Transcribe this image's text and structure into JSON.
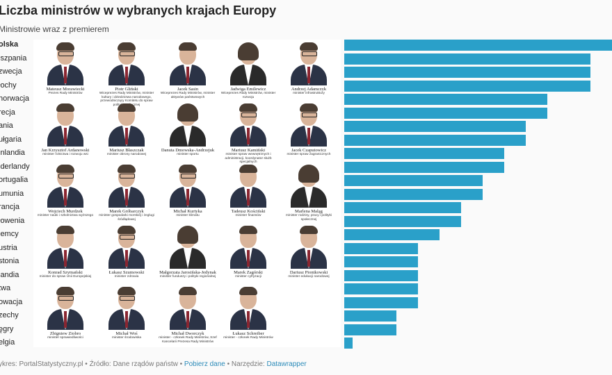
{
  "title": "Liczba ministrów w wybranych krajach Europy",
  "subtitle": "Ministrowie wraz z premierem",
  "chart_data": {
    "type": "bar",
    "orientation": "horizontal",
    "categories": [
      "Polska",
      "Hiszpania",
      "Szwecja",
      "Włochy",
      "Chorwacja",
      "Grecja",
      "Dania",
      "Bułgaria",
      "Finlandia",
      "Niderlandy",
      "Portugalia",
      "Rumunia",
      "Francja",
      "Słowenia",
      "Niemcy",
      "Austria",
      "Estonia",
      "Irlandia",
      "Łotwa",
      "Słowacja",
      "Czechy",
      "Węgry",
      "Belgia"
    ],
    "category_labels": [
      "olska",
      "iszpania",
      "zwecja",
      "łochy",
      "horwacja",
      "recja",
      "ania",
      "ułgaria",
      "inlandia",
      "iderlandy",
      "ortugalia",
      "umunia",
      "rancja",
      "łowenia",
      "iemcy",
      "ustria",
      "stonia",
      "landia",
      "twa",
      "owacja",
      "zechy",
      "ęgry",
      "elgia"
    ],
    "values": [
      24,
      23,
      23,
      23,
      21,
      21,
      20,
      20,
      19,
      19,
      18,
      18,
      17,
      17,
      16,
      15,
      15,
      15,
      15,
      15,
      14,
      14,
      12
    ],
    "highlight": "Polska",
    "xlim": [
      11.6,
      24
    ],
    "color": "#2aa0c9"
  },
  "ministers": [
    {
      "name": "Mateusz Morawiecki",
      "role": "Prezes Rady Ministrów",
      "female": false,
      "glasses": true
    },
    {
      "name": "Piotr Gliński",
      "role": "Wiceprezes Rady Ministrów, minister kultury i dziedzictwa narodowego, przewodniczący Komitetu do spraw polityki społecznej",
      "female": false,
      "glasses": true
    },
    {
      "name": "Jacek Sasin",
      "role": "Wiceprezes Rady Ministrów, minister aktywów państwowych",
      "female": false,
      "glasses": false
    },
    {
      "name": "Jadwiga Emilewicz",
      "role": "Wiceprezes Rady Ministrów, minister rozwoju",
      "female": true,
      "glasses": false
    },
    {
      "name": "Andrzej Adamczyk",
      "role": "minister infrastruktury",
      "female": false,
      "glasses": true
    },
    {
      "name": "Jan Krzysztof Ardanowski",
      "role": "minister rolnictwa i rozwoju wsi",
      "female": false,
      "glasses": false
    },
    {
      "name": "Mariusz Błaszczak",
      "role": "minister obrony narodowej",
      "female": false,
      "glasses": false
    },
    {
      "name": "Danuta Dmowska-Andrzejuk",
      "role": "minister sportu",
      "female": true,
      "glasses": false
    },
    {
      "name": "Mariusz Kamiński",
      "role": "minister spraw wewnętrznych i administracji, koordynator służb specjalnych",
      "female": false,
      "glasses": true
    },
    {
      "name": "Jacek Czaputowicz",
      "role": "minister spraw zagranicznych",
      "female": false,
      "glasses": true
    },
    {
      "name": "Wojciech Murdzek",
      "role": "minister nauki i szkolnictwa wyższego",
      "female": false,
      "glasses": true
    },
    {
      "name": "Marek Gróbarczyk",
      "role": "minister gospodarki morskiej i żeglugi śródlądowej",
      "female": false,
      "glasses": true
    },
    {
      "name": "Michał Kurtyka",
      "role": "minister klimatu",
      "female": false,
      "glasses": true
    },
    {
      "name": "Tadeusz Kościński",
      "role": "minister finansów",
      "female": false,
      "glasses": false
    },
    {
      "name": "Marlena Maląg",
      "role": "minister rodziny, pracy i polityki społecznej",
      "female": true,
      "glasses": false
    },
    {
      "name": "Konrad Szymański",
      "role": "minister do spraw Unii Europejskiej",
      "female": false,
      "glasses": false
    },
    {
      "name": "Łukasz Szumowski",
      "role": "minister zdrowia",
      "female": false,
      "glasses": true
    },
    {
      "name": "Małgorzata Jarosińska-Jedynak",
      "role": "minister funduszy i polityki regionalnej",
      "female": true,
      "glasses": false
    },
    {
      "name": "Marek Zagórski",
      "role": "minister cyfryzacji",
      "female": false,
      "glasses": false
    },
    {
      "name": "Dariusz Piontkowski",
      "role": "minister edukacji narodowej",
      "female": false,
      "glasses": false
    },
    {
      "name": "Zbigniew Ziobro",
      "role": "minister sprawiedliwości",
      "female": false,
      "glasses": true
    },
    {
      "name": "Michał Woś",
      "role": "minister środowiska",
      "female": false,
      "glasses": true
    },
    {
      "name": "Michał Dworczyk",
      "role": "minister - członek Rady Ministrów, Szef Kancelarii Prezesa Rady Ministrów",
      "female": false,
      "glasses": false
    },
    {
      "name": "Łukasz Schreiber",
      "role": "minister - członek Rady Ministrów",
      "female": false,
      "glasses": false
    }
  ],
  "footer": {
    "prefix": "ykres: PortalStatystyczny.pl • Źródło: Dane rządów państw • ",
    "download": "Pobierz dane",
    "tool_label": " • Narzędzie: ",
    "tool": "Datawrapper"
  },
  "colors": {
    "bar": "#2aa0c9",
    "link": "#2a8ab8"
  }
}
